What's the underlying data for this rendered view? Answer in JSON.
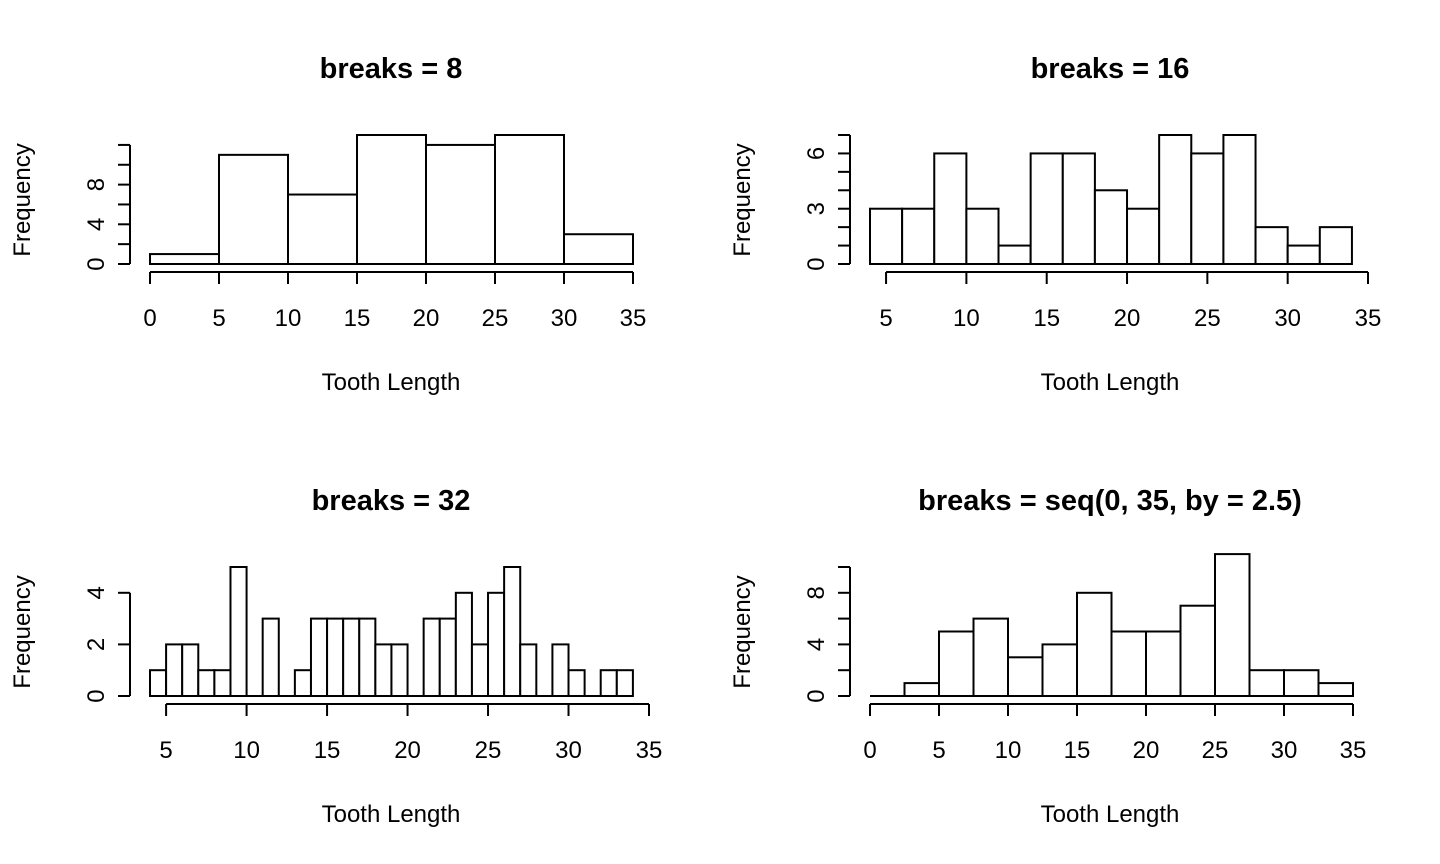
{
  "chart_data": [
    {
      "type": "bar",
      "title": "breaks = 8",
      "xlabel": "Tooth Length",
      "ylabel": "Frequency",
      "breaks": [
        0,
        5,
        10,
        15,
        20,
        25,
        30,
        35
      ],
      "values": [
        1,
        11,
        7,
        13,
        12,
        13,
        3
      ],
      "xlim": [
        0,
        35
      ],
      "ylim": [
        0,
        13
      ],
      "xticks": [
        0,
        5,
        10,
        15,
        20,
        25,
        30,
        35
      ],
      "xtick_labels": [
        "0",
        "5",
        "10",
        "15",
        "20",
        "25",
        "30",
        "35"
      ],
      "yticks": [
        0,
        4,
        8
      ],
      "ytick_labels": [
        "0",
        "4",
        "8"
      ],
      "grid": false
    },
    {
      "type": "bar",
      "title": "breaks = 16",
      "xlabel": "Tooth Length",
      "ylabel": "Frequency",
      "breaks": [
        4,
        6,
        8,
        10,
        12,
        14,
        16,
        18,
        20,
        22,
        24,
        26,
        28,
        30,
        32,
        34
      ],
      "values": [
        3,
        3,
        6,
        3,
        1,
        6,
        6,
        4,
        3,
        7,
        6,
        7,
        2,
        1,
        2
      ],
      "xlim": [
        4,
        35
      ],
      "ylim": [
        0,
        7
      ],
      "xticks": [
        5,
        10,
        15,
        20,
        25,
        30,
        35
      ],
      "xtick_labels": [
        "5",
        "10",
        "15",
        "20",
        "25",
        "30",
        "35"
      ],
      "yticks": [
        0,
        3,
        6
      ],
      "ytick_labels": [
        "0",
        "3",
        "6"
      ],
      "grid": false
    },
    {
      "type": "bar",
      "title": "breaks = 32",
      "xlabel": "Tooth Length",
      "ylabel": "Frequency",
      "breaks": [
        4,
        5,
        6,
        7,
        8,
        9,
        10,
        11,
        12,
        13,
        14,
        15,
        16,
        17,
        18,
        19,
        20,
        21,
        22,
        23,
        24,
        25,
        26,
        27,
        28,
        29,
        30,
        31,
        32,
        33,
        34
      ],
      "values": [
        1,
        2,
        2,
        1,
        1,
        5,
        0,
        3,
        0,
        1,
        3,
        3,
        3,
        3,
        2,
        2,
        0,
        3,
        3,
        4,
        2,
        4,
        5,
        2,
        0,
        2,
        1,
        0,
        1,
        1
      ],
      "xlim": [
        4,
        35
      ],
      "ylim": [
        0,
        5
      ],
      "xticks": [
        5,
        10,
        15,
        20,
        25,
        30,
        35
      ],
      "xtick_labels": [
        "5",
        "10",
        "15",
        "20",
        "25",
        "30",
        "35"
      ],
      "yticks": [
        0,
        2,
        4
      ],
      "ytick_labels": [
        "0",
        "2",
        "4"
      ],
      "grid": false
    },
    {
      "type": "bar",
      "title": "breaks = seq(0, 35, by = 2.5)",
      "xlabel": "Tooth Length",
      "ylabel": "Frequency",
      "breaks": [
        0,
        2.5,
        5,
        7.5,
        10,
        12.5,
        15,
        17.5,
        20,
        22.5,
        25,
        27.5,
        30,
        32.5,
        35
      ],
      "values": [
        0,
        1,
        5,
        6,
        3,
        4,
        8,
        5,
        5,
        7,
        11,
        2,
        2,
        1
      ],
      "xlim": [
        0,
        35
      ],
      "ylim": [
        0,
        10
      ],
      "xticks": [
        0,
        5,
        10,
        15,
        20,
        25,
        30,
        35
      ],
      "xtick_labels": [
        "0",
        "5",
        "10",
        "15",
        "20",
        "25",
        "30",
        "35"
      ],
      "yticks": [
        0,
        4,
        8
      ],
      "ytick_labels": [
        "0",
        "4",
        "8"
      ],
      "grid": false
    }
  ]
}
